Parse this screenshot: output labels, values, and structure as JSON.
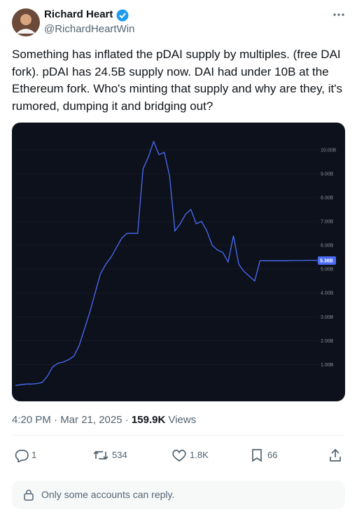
{
  "tweet": {
    "author": {
      "name": "Richard Heart",
      "handle": "@RichardHeartWin"
    },
    "text": "Something has inflated the pDAI supply by multiples. (free DAI fork). pDAI has 24.5B supply now. DAI had under 10B at the Ethereum fork. Who's minting that supply and why are they, it's rumored, dumping it and bridging out?",
    "timestamp": "4:20 PM · Mar 21, 2025 ·",
    "views": {
      "count": "159.9K",
      "label": "Views"
    },
    "actions": {
      "replies": 1,
      "reposts": 534,
      "likes": "1.8K",
      "bookmarks": 66
    },
    "reply_notice": "Only some accounts can reply."
  },
  "chart": {
    "type": "line",
    "color": "#4a6cf7",
    "values": [
      0.12,
      0.15,
      0.18,
      0.18,
      0.2,
      0.24,
      0.5,
      0.9,
      1.05,
      1.1,
      1.2,
      1.35,
      1.8,
      2.5,
      3.2,
      4.0,
      4.8,
      5.2,
      5.5,
      5.9,
      6.3,
      6.5,
      6.5,
      6.5,
      9.2,
      9.7,
      10.35,
      9.8,
      9.9,
      8.9,
      6.6,
      6.9,
      7.3,
      7.5,
      6.9,
      7.0,
      6.6,
      6.0,
      5.8,
      5.7,
      5.3,
      6.4,
      5.2,
      4.9,
      4.7,
      4.5,
      5.35,
      5.35,
      5.35,
      5.35,
      5.35,
      5.35,
      5.36,
      5.36,
      5.36,
      5.37,
      5.37,
      5.36
    ],
    "ylim": [
      -0.4,
      11
    ],
    "yticks": [
      {
        "value": 1,
        "label": "1.00B"
      },
      {
        "value": 2,
        "label": "2.00B"
      },
      {
        "value": 3,
        "label": "3.00B"
      },
      {
        "value": 4,
        "label": "4.00B"
      },
      {
        "value": 5,
        "label": "5.00B"
      },
      {
        "value": 6,
        "label": "6.00B"
      },
      {
        "value": 7,
        "label": "7.00B"
      },
      {
        "value": 8,
        "label": "8.00B"
      },
      {
        "value": 9,
        "label": "9.00B"
      },
      {
        "value": 10,
        "label": "10.00B"
      }
    ],
    "last_value": {
      "value": 5.36,
      "label": "5.36B"
    }
  }
}
